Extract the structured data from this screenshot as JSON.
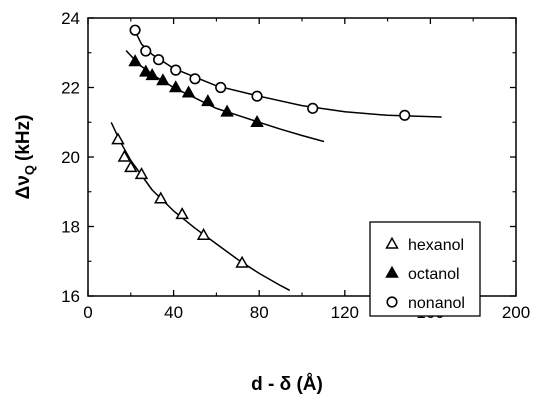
{
  "chart_data": {
    "type": "scatter",
    "xlabel": "d - δ (Å)",
    "ylabel": "Δν",
    "ylabel_sub": "Q",
    "ylabel_unit": "(kHz)",
    "xlim": [
      0,
      200
    ],
    "ylim": [
      16,
      24
    ],
    "xticks": [
      0,
      40,
      80,
      120,
      160,
      200
    ],
    "yticks": [
      16,
      18,
      20,
      22,
      24
    ],
    "grid": false,
    "legend_position": "right",
    "series": [
      {
        "name": "hexanol",
        "marker": "triangle-open",
        "points": [
          [
            14,
            20.5
          ],
          [
            17,
            20.0
          ],
          [
            20,
            19.7
          ],
          [
            25,
            19.5
          ],
          [
            34,
            18.8
          ],
          [
            44,
            18.35
          ],
          [
            54,
            17.75
          ],
          [
            72,
            16.95
          ]
        ],
        "fit": [
          [
            11,
            20.98
          ],
          [
            15,
            20.45
          ],
          [
            20,
            19.9
          ],
          [
            30,
            19.05
          ],
          [
            40,
            18.45
          ],
          [
            50,
            17.95
          ],
          [
            60,
            17.5
          ],
          [
            70,
            17.05
          ],
          [
            80,
            16.65
          ],
          [
            90,
            16.3
          ],
          [
            94,
            16.17
          ]
        ]
      },
      {
        "name": "octanol",
        "marker": "triangle-filled",
        "points": [
          [
            22,
            22.75
          ],
          [
            27,
            22.45
          ],
          [
            30,
            22.35
          ],
          [
            35,
            22.2
          ],
          [
            41,
            22.0
          ],
          [
            47,
            21.85
          ],
          [
            56,
            21.6
          ],
          [
            65,
            21.3
          ],
          [
            79,
            21.0
          ]
        ],
        "fit": [
          [
            18,
            23.05
          ],
          [
            24,
            22.65
          ],
          [
            32,
            22.3
          ],
          [
            40,
            22.0
          ],
          [
            50,
            21.7
          ],
          [
            60,
            21.4
          ],
          [
            70,
            21.2
          ],
          [
            80,
            21.0
          ],
          [
            90,
            20.8
          ],
          [
            100,
            20.62
          ],
          [
            110,
            20.45
          ]
        ]
      },
      {
        "name": "nonanol",
        "marker": "circle-open",
        "points": [
          [
            22,
            23.65
          ],
          [
            27,
            23.05
          ],
          [
            33,
            22.8
          ],
          [
            41,
            22.5
          ],
          [
            50,
            22.25
          ],
          [
            62,
            22.0
          ],
          [
            79,
            21.75
          ],
          [
            105,
            21.4
          ],
          [
            148,
            21.2
          ]
        ],
        "fit": [
          [
            21,
            23.75
          ],
          [
            25,
            23.25
          ],
          [
            30,
            22.95
          ],
          [
            40,
            22.55
          ],
          [
            50,
            22.3
          ],
          [
            60,
            22.05
          ],
          [
            80,
            21.75
          ],
          [
            100,
            21.48
          ],
          [
            120,
            21.3
          ],
          [
            140,
            21.2
          ],
          [
            165,
            21.15
          ]
        ]
      }
    ]
  }
}
